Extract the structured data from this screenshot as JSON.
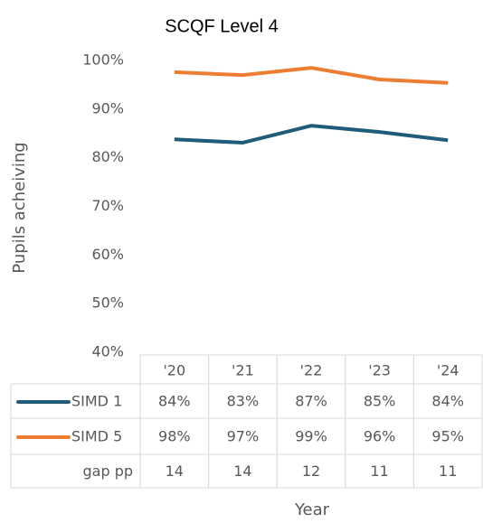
{
  "chart_data": {
    "type": "line",
    "title": "SCQF Level 4",
    "y_label": "Pupils acheiving",
    "x_label": "Year",
    "categories": [
      "'20",
      "'21",
      "'22",
      "'23",
      "'24"
    ],
    "series": [
      {
        "name": "SIMD 1",
        "color": "#1f5c7a",
        "values": [
          83.8,
          83.1,
          86.6,
          85.3,
          83.6
        ],
        "value_labels": [
          "84%",
          "83%",
          "87%",
          "85%",
          "84%"
        ]
      },
      {
        "name": "SIMD 5",
        "color": "#ed7d31",
        "values": [
          97.6,
          97.0,
          98.5,
          96.1,
          95.4
        ],
        "value_labels": [
          "98%",
          "97%",
          "99%",
          "96%",
          "95%"
        ]
      }
    ],
    "table_rows": [
      {
        "name": "gap pp",
        "values": [
          14,
          14,
          12,
          11,
          11
        ]
      }
    ],
    "ylim": [
      40,
      100
    ],
    "yticks": [
      {
        "value": 40,
        "label": "40%"
      },
      {
        "value": 50,
        "label": "50%"
      },
      {
        "value": 60,
        "label": "60%"
      },
      {
        "value": 70,
        "label": "70%"
      },
      {
        "value": 80,
        "label": "80%"
      },
      {
        "value": 90,
        "label": "90%"
      },
      {
        "value": 100,
        "label": "100%"
      }
    ],
    "grid": false
  }
}
